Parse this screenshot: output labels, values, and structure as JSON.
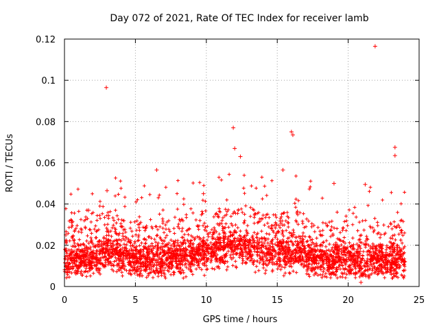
{
  "chart_data": {
    "type": "scatter",
    "title": "Day 072 of 2021, Rate Of TEC Index for receiver lamb",
    "xlabel": "GPS time / hours",
    "ylabel": "ROTI / TECUs",
    "xlim": [
      0,
      25
    ],
    "ylim": [
      0,
      0.12
    ],
    "x_ticks": [
      0,
      5,
      10,
      15,
      20,
      25
    ],
    "x_tick_labels": [
      "0",
      "5",
      "10",
      "15",
      "20",
      "25"
    ],
    "y_ticks": [
      0,
      0.02,
      0.04,
      0.06,
      0.08,
      0.1,
      0.12
    ],
    "y_tick_labels": [
      "0",
      "0.02",
      "0.04",
      "0.06",
      "0.08",
      "0.1",
      "0.12"
    ],
    "grid": true,
    "marker": "+",
    "series": [
      {
        "name": "ROTI",
        "color": "#ff0000",
        "sample_points": [
          {
            "x": 2.95,
            "y": 0.0965
          },
          {
            "x": 21.9,
            "y": 0.1165
          },
          {
            "x": 11.9,
            "y": 0.077
          },
          {
            "x": 16.0,
            "y": 0.075
          },
          {
            "x": 16.1,
            "y": 0.0735
          },
          {
            "x": 23.3,
            "y": 0.0675
          },
          {
            "x": 23.3,
            "y": 0.0635
          },
          {
            "x": 6.5,
            "y": 0.0565
          },
          {
            "x": 15.4,
            "y": 0.0565
          },
          {
            "x": 3.0,
            "y": 0.0465
          },
          {
            "x": 21.2,
            "y": 0.0495
          },
          {
            "x": 12.4,
            "y": 0.063
          },
          {
            "x": 12.0,
            "y": 0.067
          },
          {
            "x": 0.1,
            "y": 0.025
          },
          {
            "x": 0.5,
            "y": 0.031
          },
          {
            "x": 1.7,
            "y": 0.037
          },
          {
            "x": 9.8,
            "y": 0.045
          },
          {
            "x": 19.0,
            "y": 0.05
          },
          {
            "x": 20.9,
            "y": 0.002
          },
          {
            "x": 24.0,
            "y": 0.012
          }
        ]
      }
    ]
  }
}
